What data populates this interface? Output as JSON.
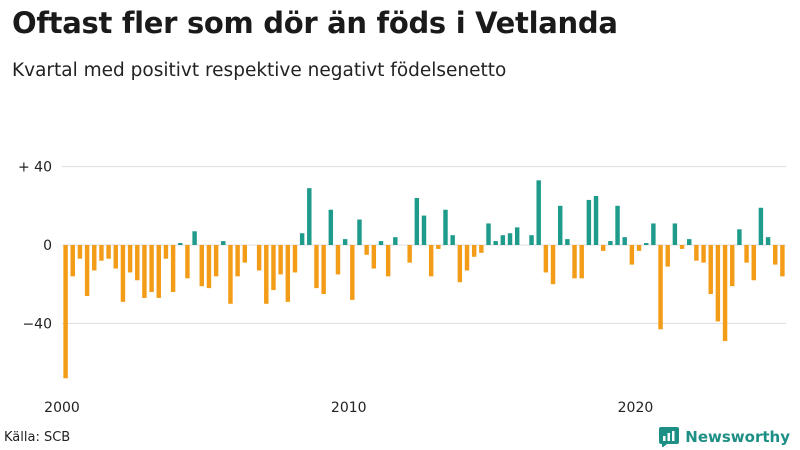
{
  "header": {
    "title": "Oftast fler som dör än föds i Vetlanda",
    "subtitle": "Kvartal med positivt respektive negativt födelsenetto"
  },
  "footer": {
    "source": "Källa: SCB",
    "brand": "Newsworthy"
  },
  "colors": {
    "positive": "#1f9b8c",
    "negative": "#f39c17",
    "grid": "#dddddd",
    "brand": "#1d8f85"
  },
  "chart_data": {
    "type": "bar",
    "title": "Oftast fler som dör än föds i Vetlanda",
    "subtitle": "Kvartal med positivt respektive negativt födelsenetto",
    "xlabel": "",
    "ylabel": "",
    "ylim": [
      -70,
      40
    ],
    "y_ticks": [
      {
        "value": 40,
        "label": "+ 40"
      },
      {
        "value": 0,
        "label": "0"
      },
      {
        "value": -40,
        "label": "−40"
      }
    ],
    "x_ticks": [
      {
        "value": 2000,
        "label": "2000"
      },
      {
        "value": 2010,
        "label": "2010"
      },
      {
        "value": 2020,
        "label": "2020"
      }
    ],
    "grid": true,
    "x_start": 2000,
    "values": [
      -68,
      -16,
      -7,
      -26,
      -13,
      -8,
      -7,
      -12,
      -29,
      -14,
      -18,
      -27,
      -24,
      -27,
      -7,
      -24,
      1,
      -17,
      7,
      -21,
      -22,
      -16,
      2,
      -30,
      -16,
      -9,
      0,
      -13,
      -30,
      -23,
      -15,
      -29,
      -14,
      6,
      29,
      -22,
      -25,
      18,
      -15,
      3,
      -28,
      13,
      -5,
      -12,
      2,
      -16,
      4,
      0,
      -9,
      24,
      15,
      -16,
      -2,
      18,
      5,
      -19,
      -13,
      -6,
      -4,
      11,
      2,
      5,
      6,
      9,
      0,
      5,
      33,
      -14,
      -20,
      20,
      3,
      -17,
      -17,
      23,
      25,
      -3,
      2,
      20,
      4,
      -10,
      -3,
      1,
      11,
      -43,
      -11,
      11,
      -2,
      3,
      -8,
      -9,
      -25,
      -39,
      -49,
      -21,
      8,
      -9,
      -18,
      19,
      4,
      -10,
      -16
    ]
  }
}
